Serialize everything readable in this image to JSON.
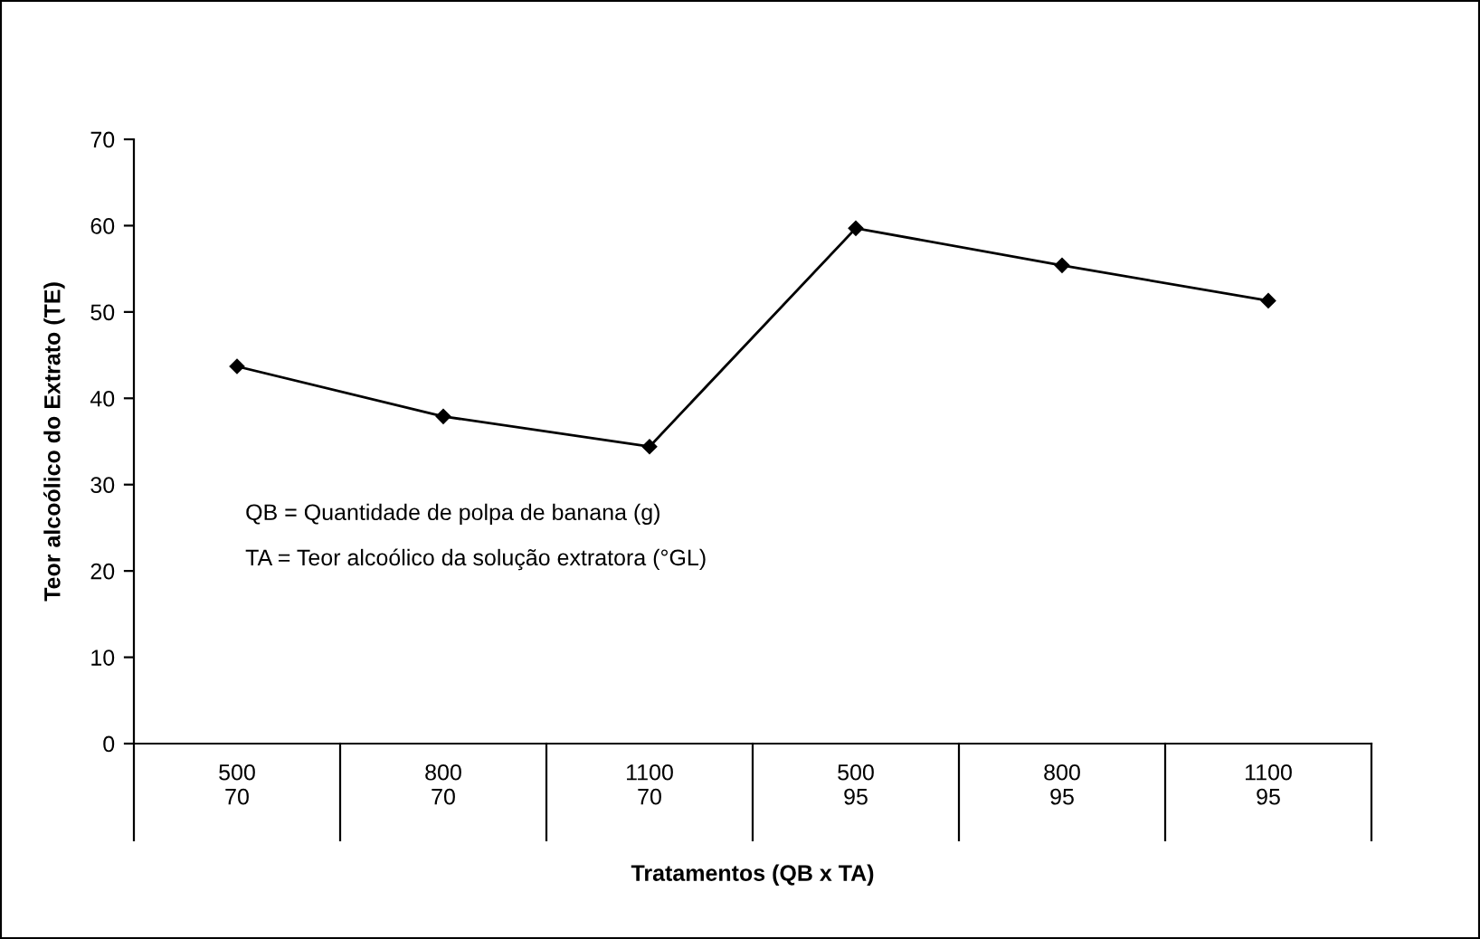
{
  "chart_data": {
    "type": "line",
    "xlabel": "Tratamentos (QB x TA)",
    "ylabel": "Teor alcoólico do Extrato (TE)",
    "categories": [
      "500\n70",
      "800\n70",
      "1100\n70",
      "500\n95",
      "800\n95",
      "1100\n95"
    ],
    "series": [
      {
        "color": "#000000",
        "values": [
          43.7,
          37.9,
          34.4,
          59.7,
          55.4,
          51.3
        ]
      }
    ],
    "ylim": [
      0,
      70
    ],
    "yticks": [
      0,
      10,
      20,
      30,
      40,
      50,
      60,
      70
    ],
    "marker": "diamond",
    "line_style": "solid",
    "grid": false,
    "legend": false,
    "annotations": [
      "QB = Quantidade de polpa de banana (g)",
      "TA = Teor alcoólico da solução extratora (°GL)"
    ]
  }
}
